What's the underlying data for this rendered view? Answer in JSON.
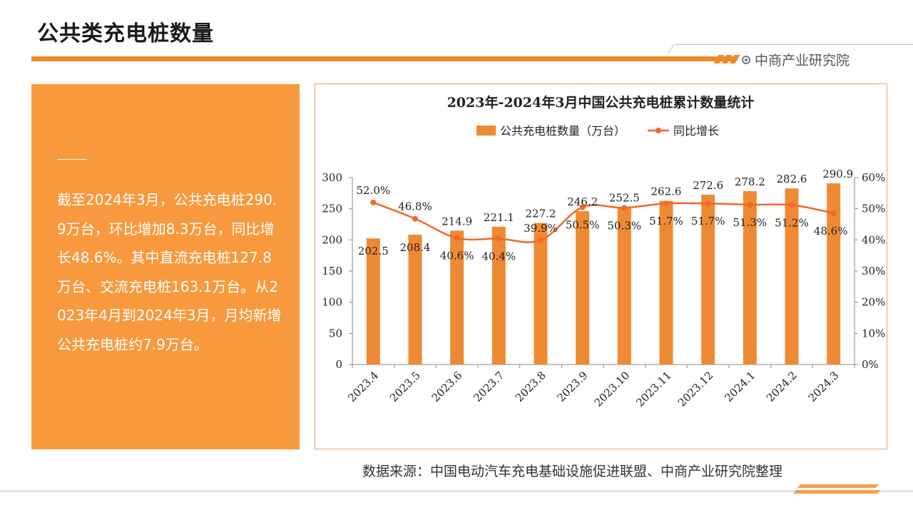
{
  "page": {
    "title": "公共类充电桩数量",
    "brand": "中商产业研究院",
    "summary": "截至2024年3月，公共充电桩290.9万台，环比增加8.3万台，同比增长48.6%。其中直流充电桩127.8万台、交流充电桩163.1万台。从2023年4月到2024年3月，月均新增公共充电桩约7.9万台。",
    "source": "数据来源：中国电动汽车充电基础设施促进联盟、中商产业研究院整理"
  },
  "colors": {
    "accent": "#f08a28",
    "bar": "#ef8a34",
    "line": "#f0682a",
    "panel": "#f8993d"
  },
  "chart_data": {
    "type": "bar",
    "title": "2023年-2024年3月中国公共充电桩累计数量统计",
    "categories": [
      "2023.4",
      "2023.5",
      "2023.6",
      "2023.7",
      "2023.8",
      "2023.9",
      "2023.10",
      "2023.11",
      "2023.12",
      "2024.1",
      "2024.2",
      "2024.3"
    ],
    "series": [
      {
        "name": "公共充电桩数量（万台）",
        "type": "bar",
        "axis": "left",
        "values": [
          202.5,
          208.4,
          214.9,
          221.1,
          227.2,
          246.2,
          252.5,
          262.6,
          272.6,
          278.2,
          282.6,
          290.9
        ],
        "labels": [
          "202.5",
          "208.4",
          "214.9",
          "221.1",
          "227.2",
          "246.2",
          "252.5",
          "262.6",
          "272.6",
          "278.2",
          "282.6",
          "290.9"
        ]
      },
      {
        "name": "同比增长",
        "type": "line",
        "axis": "right",
        "values": [
          52.0,
          46.8,
          40.6,
          40.4,
          39.9,
          50.5,
          50.3,
          51.7,
          51.7,
          51.3,
          51.2,
          48.6
        ],
        "labels": [
          "52.0%",
          "46.8%",
          "40.6%",
          "40.4%",
          "39.9%",
          "50.5%",
          "50.3%",
          "51.7%",
          "51.7%",
          "51.3%",
          "51.2%",
          "48.6%"
        ]
      }
    ],
    "y_left": {
      "min": 0,
      "max": 300,
      "ticks": [
        "0",
        "50",
        "100",
        "150",
        "200",
        "250",
        "300"
      ]
    },
    "y_right": {
      "min": 0,
      "max": 60,
      "ticks": [
        "0%",
        "10%",
        "20%",
        "30%",
        "40%",
        "50%",
        "60%"
      ]
    },
    "legend": "top-center",
    "grid": false
  }
}
